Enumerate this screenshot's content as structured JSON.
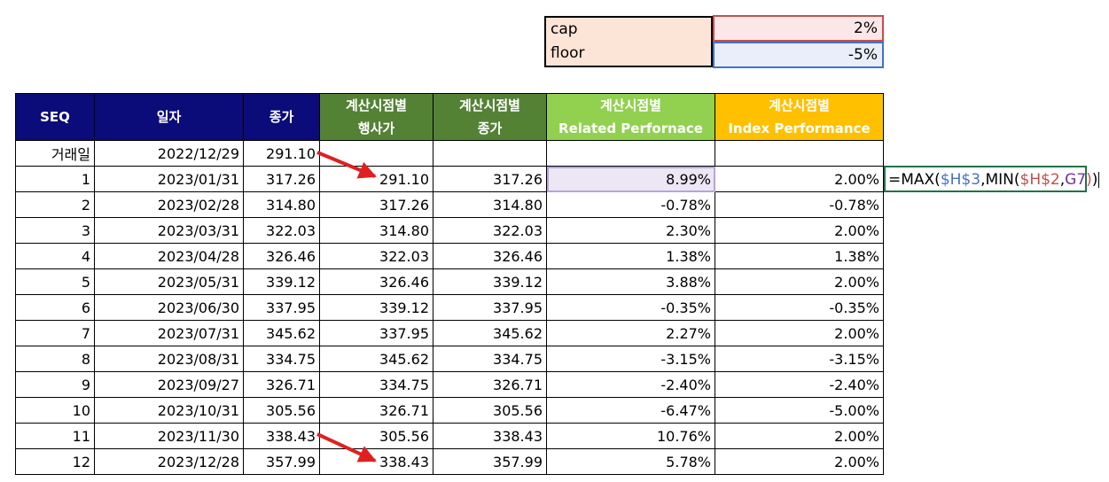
{
  "params": {
    "cap_label": "cap",
    "cap_value": "2%",
    "floor_label": "floor",
    "floor_value": "-5%"
  },
  "headers": {
    "seq": "SEQ",
    "date": "일자",
    "close": "종가",
    "calc_exercise_l1": "계산시점별",
    "calc_exercise_l2": "행사가",
    "calc_close_l1": "계산시점별",
    "calc_close_l2": "종가",
    "related_l1": "계산시점별",
    "related_l2": "Related Perfornace",
    "index_l1": "계산시점별",
    "index_l2": "Index Performance"
  },
  "colors": {
    "header_navy": "#0b0b7a",
    "header_dark_green": "#548235",
    "header_light_green": "#92d050",
    "header_orange": "#ffc000",
    "cap_fill": "#fbe6e8",
    "floor_fill": "#e9eefa",
    "arrow": "#e02020"
  },
  "rows": [
    [
      "거래일",
      "2022/12/29",
      "291.10",
      "",
      "",
      "",
      ""
    ],
    [
      "1",
      "2023/01/31",
      "317.26",
      "291.10",
      "317.26",
      "8.99%",
      "2.00%"
    ],
    [
      "2",
      "2023/02/28",
      "314.80",
      "317.26",
      "314.80",
      "-0.78%",
      "-0.78%"
    ],
    [
      "3",
      "2023/03/31",
      "322.03",
      "314.80",
      "322.03",
      "2.30%",
      "2.00%"
    ],
    [
      "4",
      "2023/04/28",
      "326.46",
      "322.03",
      "326.46",
      "1.38%",
      "1.38%"
    ],
    [
      "5",
      "2023/05/31",
      "339.12",
      "326.46",
      "339.12",
      "3.88%",
      "2.00%"
    ],
    [
      "6",
      "2023/06/30",
      "337.95",
      "339.12",
      "337.95",
      "-0.35%",
      "-0.35%"
    ],
    [
      "7",
      "2023/07/31",
      "345.62",
      "337.95",
      "345.62",
      "2.27%",
      "2.00%"
    ],
    [
      "8",
      "2023/08/31",
      "334.75",
      "345.62",
      "334.75",
      "-3.15%",
      "-3.15%"
    ],
    [
      "9",
      "2023/09/27",
      "326.71",
      "334.75",
      "326.71",
      "-2.40%",
      "-2.40%"
    ],
    [
      "10",
      "2023/10/31",
      "305.56",
      "326.71",
      "305.56",
      "-6.47%",
      "-5.00%"
    ],
    [
      "11",
      "2023/11/30",
      "338.43",
      "305.56",
      "338.43",
      "10.76%",
      "2.00%"
    ],
    [
      "12",
      "2023/12/28",
      "357.99",
      "338.43",
      "357.99",
      "5.78%",
      "2.00%"
    ]
  ],
  "formula": {
    "p1": "=MAX(",
    "p2": "$H$3",
    "p3": ",MIN(",
    "p4": "$H$2",
    "p5": ",",
    "p6": "G7",
    "p7": ")",
    "p8": ")"
  }
}
